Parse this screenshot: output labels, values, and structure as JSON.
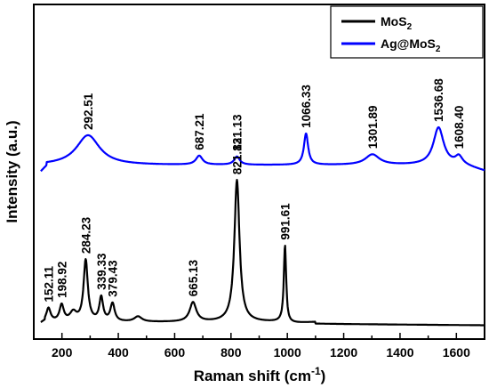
{
  "chart_data": {
    "type": "line",
    "xlabel": "Raman shift (cm",
    "xlabel_superscript": "-1",
    "xlabel_suffix": ")",
    "ylabel": "Intensity (a.u.)",
    "xlim": [
      100,
      1700
    ],
    "x_ticks": [
      200,
      400,
      600,
      800,
      1000,
      1200,
      1400,
      1600
    ],
    "y_ticks_shown": false,
    "legend_placement": "top-right",
    "series": [
      {
        "name": "MoS",
        "name_subscript": "2",
        "color": "#000000",
        "baseline": 0,
        "peaks": [
          {
            "x": 152.11,
            "h": 0.09,
            "w": 9,
            "label": "152.11"
          },
          {
            "x": 198.92,
            "h": 0.11,
            "w": 9,
            "label": "198.92"
          },
          {
            "x": 240,
            "h": 0.06,
            "w": 14
          },
          {
            "x": 284.23,
            "h": 0.41,
            "w": 9,
            "label": "284.23"
          },
          {
            "x": 339.33,
            "h": 0.16,
            "w": 8,
            "label": "339.33"
          },
          {
            "x": 379.43,
            "h": 0.12,
            "w": 9,
            "label": "379.43"
          },
          {
            "x": 470,
            "h": 0.035,
            "w": 16
          },
          {
            "x": 665.13,
            "h": 0.13,
            "w": 14,
            "label": "665.13"
          },
          {
            "x": 821.13,
            "h": 0.95,
            "w": 11,
            "label": "821.13"
          },
          {
            "x": 991.61,
            "h": 0.51,
            "w": 5,
            "label": "991.61"
          }
        ]
      },
      {
        "name": "Ag@MoS",
        "name_subscript": "2",
        "color": "#0000ff",
        "baseline": 1.05,
        "peaks": [
          {
            "x": 292.51,
            "h": 0.2,
            "w": 50,
            "label": "292.51"
          },
          {
            "x": 687.21,
            "h": 0.06,
            "w": 14,
            "label": "687.21"
          },
          {
            "x": 821.13,
            "h": 0.055,
            "w": 12,
            "label": "821.13"
          },
          {
            "x": 1066.33,
            "h": 0.21,
            "w": 9,
            "label": "1066.33"
          },
          {
            "x": 1301.89,
            "h": 0.07,
            "w": 30,
            "label": "1301.89"
          },
          {
            "x": 1536.68,
            "h": 0.25,
            "w": 22,
            "label": "1536.68"
          },
          {
            "x": 1608.4,
            "h": 0.05,
            "w": 14,
            "label": "1608.40"
          }
        ]
      }
    ]
  }
}
